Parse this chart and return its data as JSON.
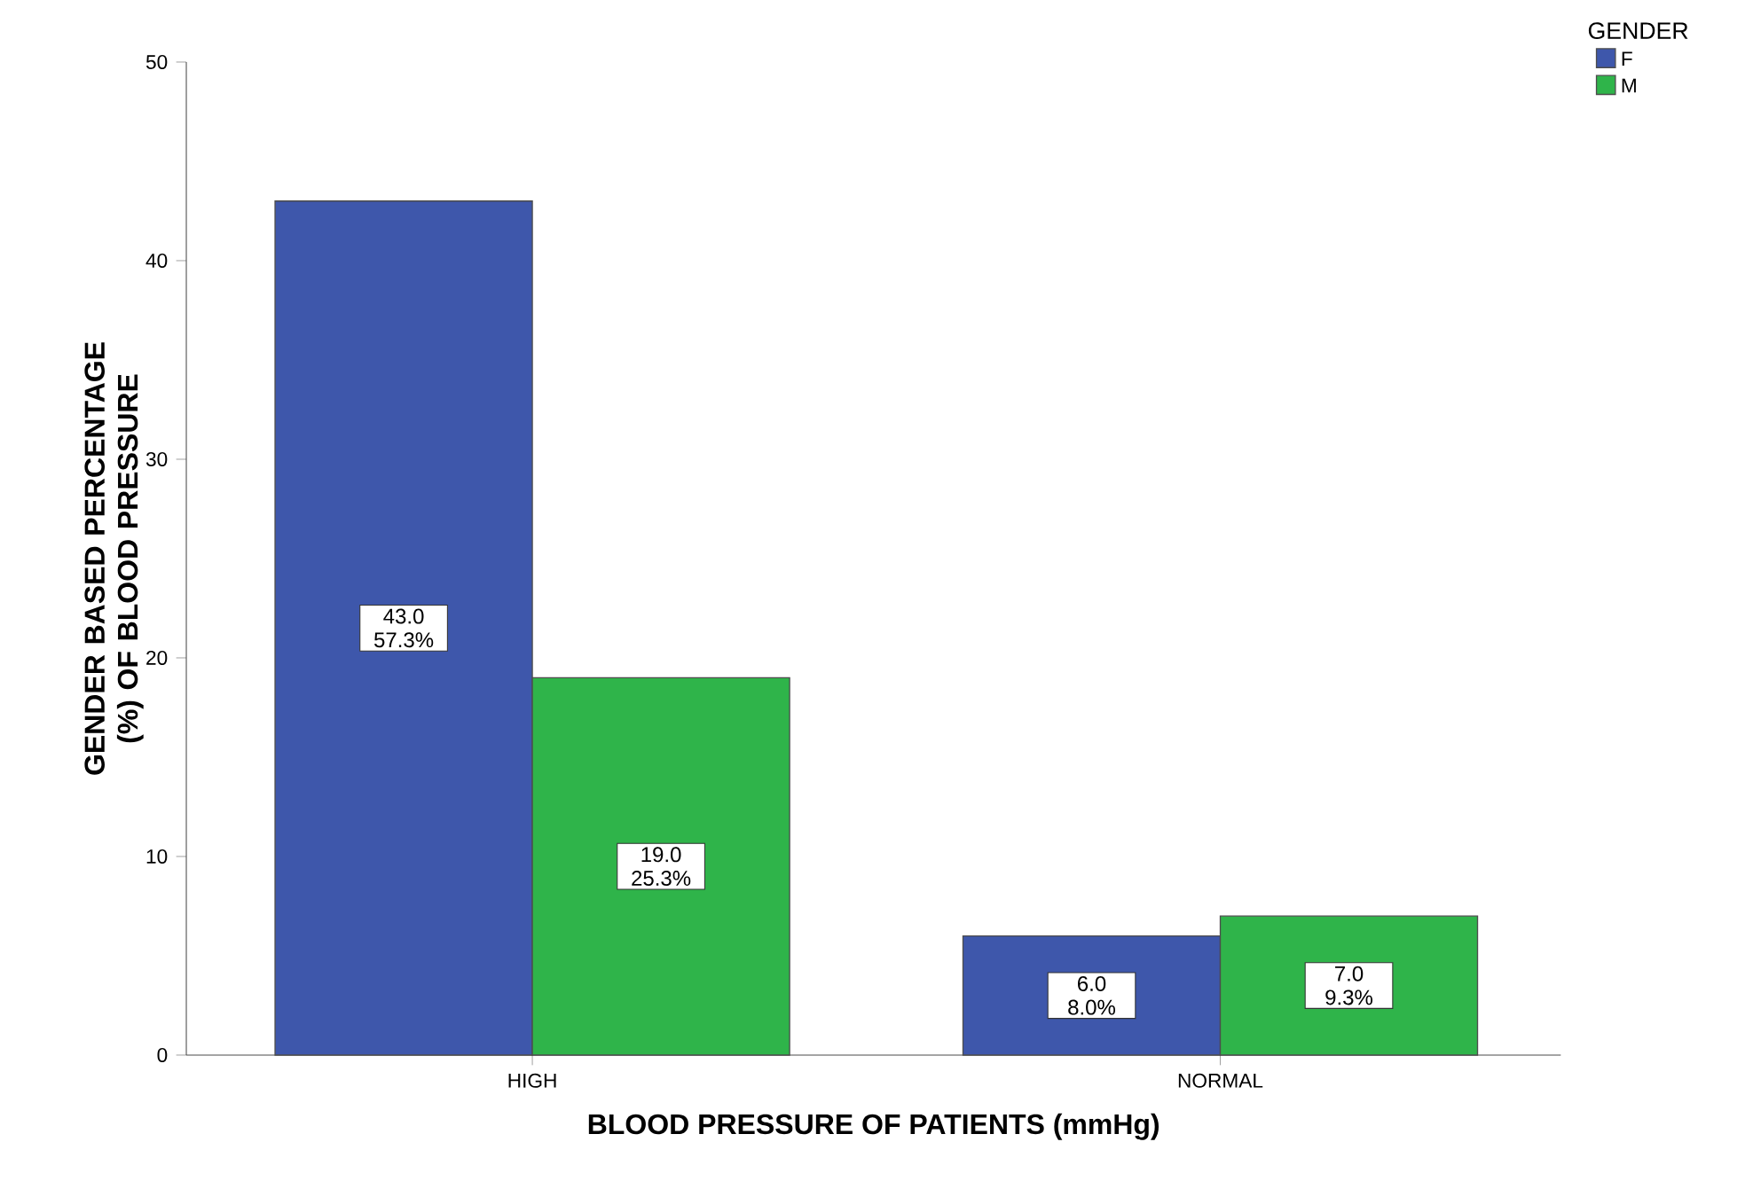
{
  "chart_data": {
    "type": "bar",
    "xlabel": "BLOOD PRESSURE OF PATIENTS (mmHg)",
    "ylabel": "GENDER BASED PERCENTAGE (%) OF BLOOD PRESSURE",
    "legend_title": "GENDER",
    "categories": [
      "HIGH",
      "NORMAL"
    ],
    "series": [
      {
        "name": "F",
        "color": "#3e57ab",
        "values": [
          43,
          6
        ],
        "value_labels": [
          "43.0 57.3%",
          "6.0 8.0%"
        ]
      },
      {
        "name": "M",
        "color": "#2fb44a",
        "values": [
          19,
          7
        ],
        "value_labels": [
          "19.0 25.3%",
          "7.0 9.3%"
        ]
      }
    ],
    "ylim": [
      0,
      50
    ],
    "yticks": [
      0,
      10,
      20,
      30,
      40,
      50
    ],
    "legend": "top right"
  }
}
